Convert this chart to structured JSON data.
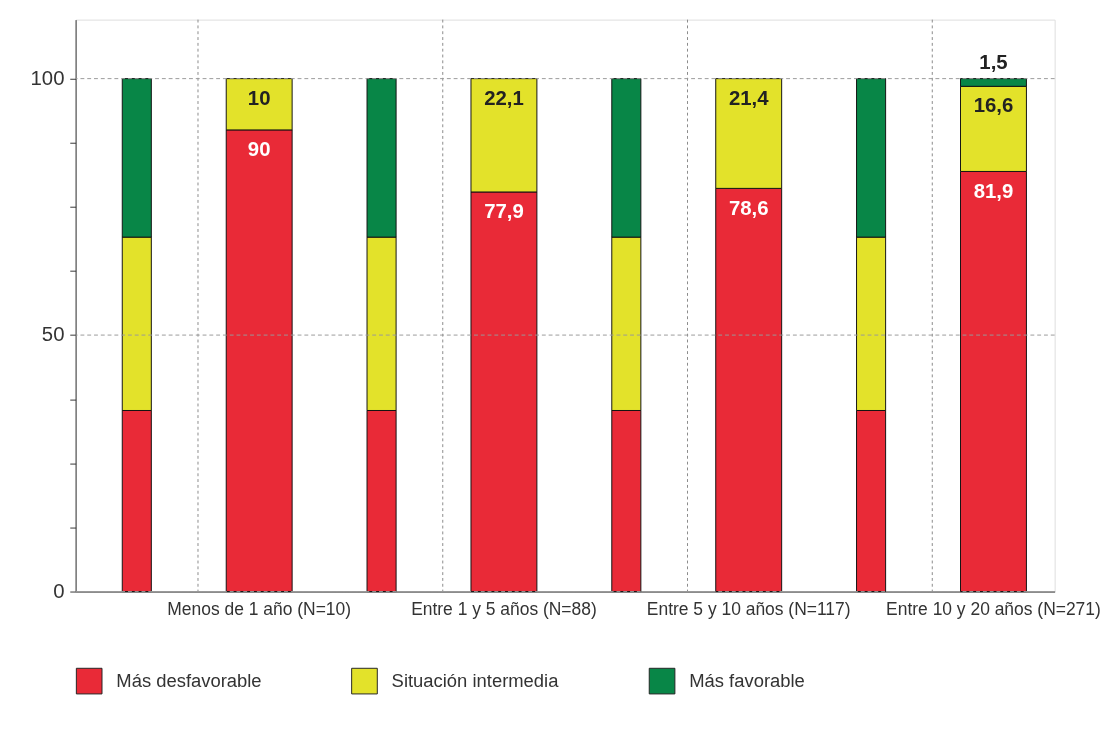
{
  "chart_data": {
    "type": "bar",
    "stacked": true,
    "categories": [
      null,
      "Menos de 1 año (N=10)",
      null,
      "Entre 1 y 5 años (N=88)",
      null,
      "Entre 5 y 10 años (N=117)",
      null,
      "Entre 10 y 20 años (N=271)"
    ],
    "series": [
      {
        "name": "Más desfavorable",
        "color": "#e92a37",
        "values": [
          35.3,
          90,
          35.3,
          77.9,
          35.3,
          78.6,
          35.3,
          81.9
        ],
        "value_labels": [
          null,
          "90",
          null,
          "77,9",
          null,
          "78,6",
          null,
          "81,9"
        ]
      },
      {
        "name": "Situación intermedia",
        "color": "#e3e22a",
        "values": [
          33.8,
          10,
          33.8,
          22.1,
          33.8,
          21.4,
          33.8,
          16.6
        ],
        "value_labels": [
          null,
          "10",
          null,
          "22,1",
          null,
          "21,4",
          null,
          "16,6"
        ]
      },
      {
        "name": "Más favorable",
        "color": "#088647",
        "values": [
          30.9,
          null,
          30.9,
          null,
          30.9,
          null,
          30.9,
          1.5
        ],
        "value_labels": [
          null,
          null,
          null,
          null,
          null,
          null,
          null,
          "1,5"
        ]
      }
    ],
    "ylim": [
      0,
      111.5
    ],
    "yticks": [
      0,
      {
        "value": 12.5,
        "label": null
      },
      {
        "value": 25,
        "label": null
      },
      {
        "value": 37.5,
        "label": null
      },
      50,
      {
        "value": 62.5,
        "label": null
      },
      {
        "value": 75,
        "label": null
      },
      {
        "value": 87.5,
        "label": null
      },
      100
    ],
    "grid": true,
    "legend": "bottom"
  }
}
